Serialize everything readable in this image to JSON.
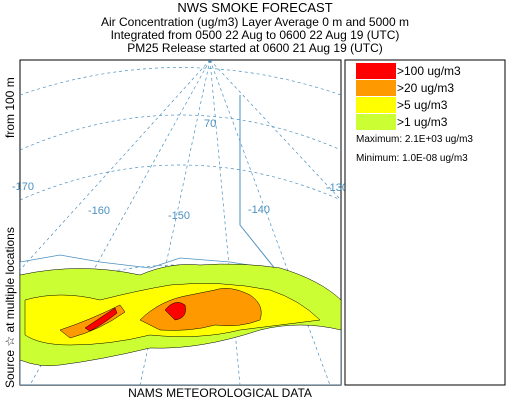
{
  "header": {
    "title": "NWS SMOKE FORECAST",
    "lines": [
      "Air Concentration (ug/m3) Layer Average    0 m and  5000 m",
      "Integrated from 0500 22 Aug to 0600 22 Aug 19 (UTC)",
      "PM25 Release started at 0600 21 Aug 19 (UTC)"
    ]
  },
  "side_label": {
    "source": "Source ☆ at multiple locations",
    "height": "from  100 m"
  },
  "legend": {
    "items": [
      {
        "label": ">100 ug/m3",
        "color": "#ff0000"
      },
      {
        "label": ">20 ug/m3",
        "color": "#ff9900"
      },
      {
        "label": ">5 ug/m3",
        "color": "#ffff00"
      },
      {
        "label": ">1 ug/m3",
        "color": "#ccff33"
      }
    ],
    "maximum": "Maximum: 2.1E+03 ug/m3",
    "minimum": "Minimum: 1.0E-08 ug/m3"
  },
  "map": {
    "graticule_labels": [
      "-170",
      "-160",
      "-150",
      "-140",
      "-130",
      "70"
    ]
  },
  "footer": "NAMS METEOROLOGICAL DATA"
}
